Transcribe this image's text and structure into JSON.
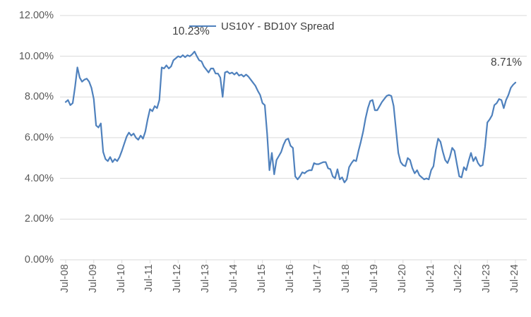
{
  "chart_data": {
    "type": "line",
    "title": "",
    "legend_position": "top-center",
    "grid": true,
    "ylim": [
      0,
      12
    ],
    "y_tick_labels": [
      "0.00%",
      "2.00%",
      "4.00%",
      "6.00%",
      "8.00%",
      "10.00%",
      "12.00%"
    ],
    "x_tick_labels": [
      "Jul-08",
      "Jul-09",
      "Jul-10",
      "Jul-11",
      "Jul-12",
      "Jul-13",
      "Jul-14",
      "Jul-15",
      "Jul-16",
      "Jul-17",
      "Jul-18",
      "Jul-19",
      "Jul-20",
      "Jul-21",
      "Jul-22",
      "Jul-23",
      "Jul-24"
    ],
    "x_frequency": "monthly",
    "series": [
      {
        "name": "US10Y - BD10Y Spread",
        "color": "#4F81BD",
        "values": [
          7.75,
          7.85,
          7.6,
          7.7,
          8.5,
          9.45,
          8.95,
          8.75,
          8.85,
          8.9,
          8.75,
          8.45,
          7.9,
          6.6,
          6.5,
          6.7,
          5.3,
          4.95,
          4.85,
          5.05,
          4.8,
          4.95,
          4.85,
          5.05,
          5.35,
          5.7,
          6.05,
          6.25,
          6.1,
          6.2,
          6.0,
          5.9,
          6.1,
          5.95,
          6.3,
          6.9,
          7.4,
          7.3,
          7.55,
          7.45,
          7.85,
          9.45,
          9.4,
          9.55,
          9.4,
          9.5,
          9.8,
          9.9,
          10.0,
          9.95,
          10.05,
          9.95,
          10.05,
          10.0,
          10.1,
          10.23,
          10.0,
          9.8,
          9.75,
          9.5,
          9.35,
          9.2,
          9.4,
          9.4,
          9.15,
          9.15,
          8.95,
          8.0,
          9.2,
          9.25,
          9.15,
          9.2,
          9.1,
          9.2,
          9.05,
          9.1,
          9.0,
          9.1,
          9.0,
          8.85,
          8.7,
          8.55,
          8.3,
          8.1,
          7.7,
          7.6,
          6.2,
          4.4,
          5.25,
          4.2,
          4.9,
          5.1,
          5.3,
          5.65,
          5.9,
          5.95,
          5.6,
          5.5,
          4.1,
          3.95,
          4.1,
          4.3,
          4.25,
          4.35,
          4.4,
          4.4,
          4.75,
          4.7,
          4.7,
          4.75,
          4.8,
          4.8,
          4.5,
          4.45,
          4.1,
          4.0,
          4.45,
          3.95,
          4.05,
          3.8,
          3.95,
          4.55,
          4.75,
          4.9,
          4.85,
          5.35,
          5.8,
          6.3,
          6.95,
          7.45,
          7.8,
          7.85,
          7.35,
          7.35,
          7.55,
          7.75,
          7.9,
          8.05,
          8.1,
          8.05,
          7.55,
          6.4,
          5.25,
          4.8,
          4.65,
          4.6,
          5.0,
          4.9,
          4.5,
          4.25,
          4.4,
          4.15,
          4.05,
          3.95,
          4.0,
          3.95,
          4.4,
          4.6,
          5.4,
          5.95,
          5.8,
          5.3,
          4.9,
          4.75,
          5.05,
          5.5,
          5.35,
          4.7,
          4.1,
          4.05,
          4.55,
          4.4,
          4.85,
          5.25,
          4.85,
          5.05,
          4.75,
          4.6,
          4.65,
          5.55,
          6.75,
          6.9,
          7.1,
          7.6,
          7.7,
          7.9,
          7.85,
          7.45,
          7.85,
          8.1,
          8.45,
          8.6,
          8.71
        ]
      }
    ],
    "annotations": [
      {
        "text": "10.23%",
        "point_index": 55,
        "value": 10.23
      },
      {
        "text": "8.71%",
        "point_index": 192,
        "value": 8.71
      }
    ]
  },
  "colors": {
    "line": "#4F81BD",
    "gridline": "#D9D9D9",
    "axis_line": "#D9D9D9",
    "axis_text": "#595959",
    "annotation_text": "#404040",
    "background": "#FFFFFF"
  }
}
